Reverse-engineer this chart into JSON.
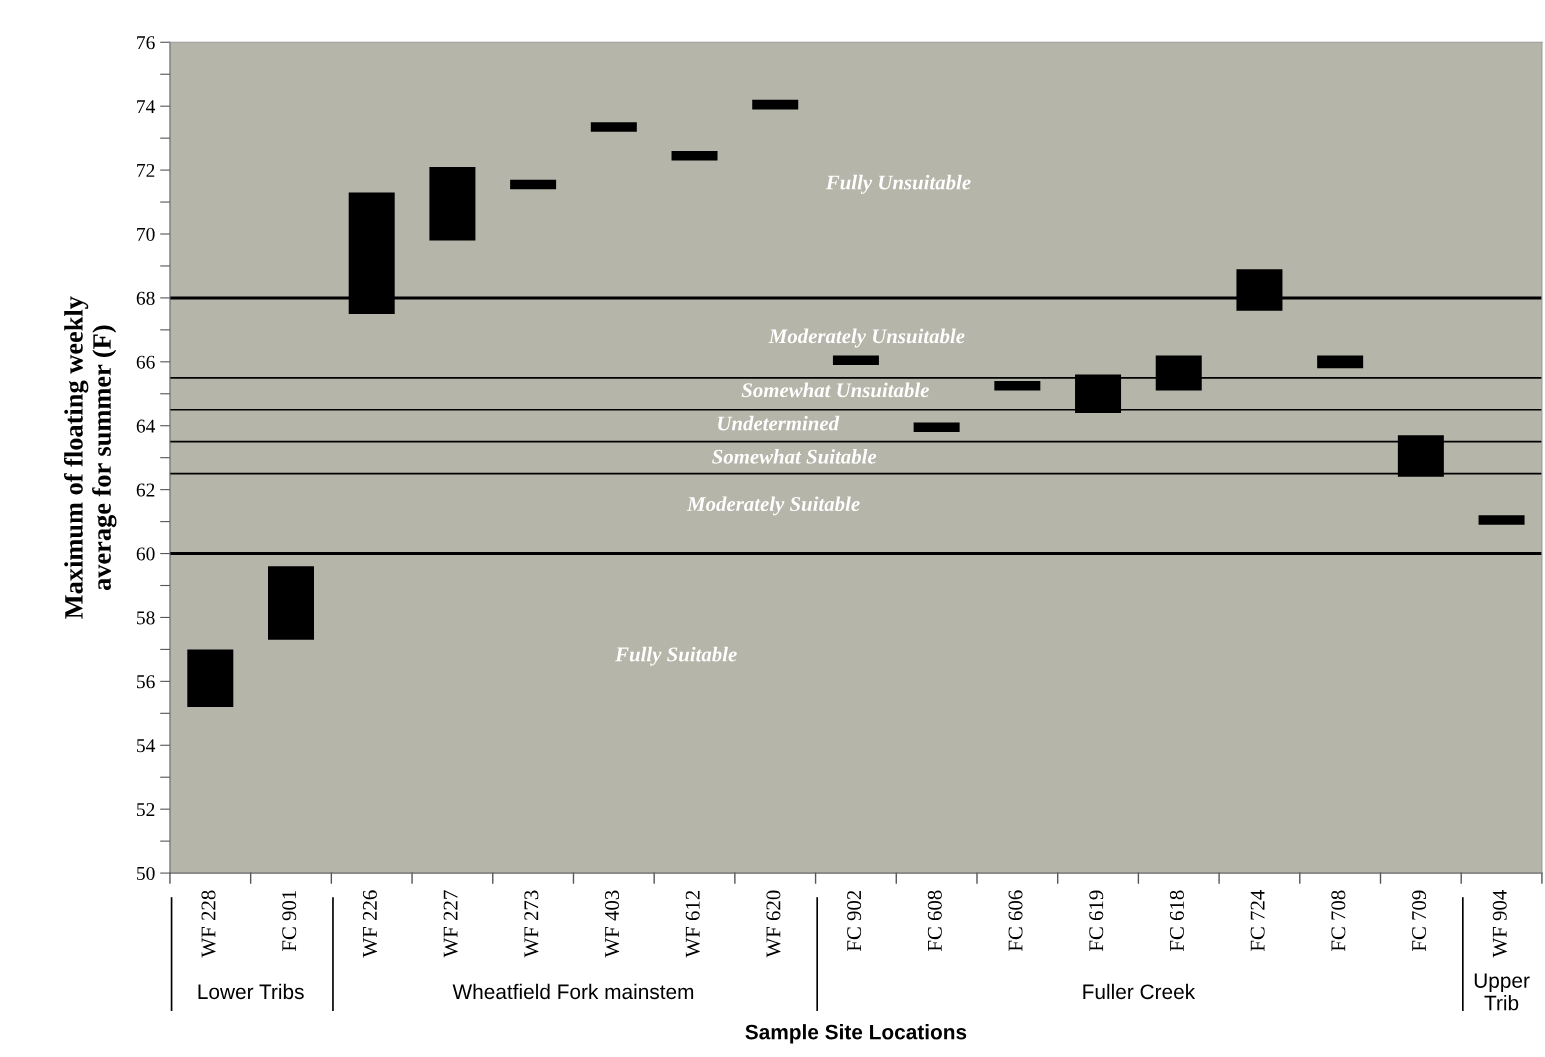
{
  "chart_data": {
    "type": "bar",
    "xlabel": "Sample Site Locations",
    "ylabel": "Maximum of floating weekly\naverage for summer (F)",
    "categories": [
      "WF 228",
      "FC 901",
      "WF 226",
      "WF 227",
      "WF 273",
      "WF 403",
      "WF 612",
      "WF 620",
      "FC 902",
      "FC 608",
      "FC 606",
      "FC 619",
      "FC 618",
      "FC 724",
      "FC 708",
      "FC 709",
      "WF 904"
    ],
    "base": [
      55.2,
      57.3,
      67.5,
      69.8,
      71.4,
      73.2,
      72.3,
      73.9,
      65.9,
      63.8,
      65.1,
      64.4,
      65.1,
      67.6,
      65.8,
      62.4,
      60.9
    ],
    "values": [
      1.8,
      2.3,
      3.8,
      2.3,
      0.3,
      0.3,
      0.3,
      0.3,
      0.3,
      0.3,
      0.3,
      1.2,
      1.1,
      1.3,
      0.4,
      1.3,
      0.3
    ],
    "color": "#000000",
    "ylim": [
      50,
      76
    ],
    "yticks": [
      50,
      {
        "value": 51,
        "label": null
      },
      52,
      {
        "value": 53,
        "label": null
      },
      54,
      {
        "value": 55,
        "label": null
      },
      56,
      {
        "value": 57,
        "label": null
      },
      58,
      {
        "value": 59,
        "label": null
      },
      60,
      {
        "value": 61,
        "label": null
      },
      62,
      {
        "value": 63,
        "label": null
      },
      64,
      {
        "value": 65,
        "label": null
      },
      66,
      {
        "value": 67,
        "label": null
      },
      68,
      {
        "value": 69,
        "label": null
      },
      70,
      {
        "value": 71,
        "label": null
      },
      72,
      {
        "value": 73,
        "label": null
      },
      74,
      {
        "value": 75,
        "label": null
      },
      76
    ],
    "grid": false,
    "ref_lines": [
      {
        "axis": "y",
        "value": 68,
        "color": "#000000"
      },
      {
        "axis": "y",
        "value": 65.5,
        "color": "#000000"
      },
      {
        "axis": "y",
        "value": 64.5,
        "color": "#000000"
      },
      {
        "axis": "y",
        "value": 63.5,
        "color": "#000000"
      },
      {
        "axis": "y",
        "value": 62.5,
        "color": "#000000"
      },
      {
        "axis": "y",
        "value": 60,
        "color": "#000000"
      }
    ],
    "annotations": [
      "Fully Unsuitable",
      "Moderately Unsuitable",
      "Somewhat Unsuitable",
      "Undetermined",
      "Somewhat Suitable",
      "Moderately Suitable",
      "Fully Suitable",
      "Lower Tribs",
      "Wheatfield Fork mainstem",
      "Fuller Creek",
      "Upper\nTrib"
    ]
  }
}
